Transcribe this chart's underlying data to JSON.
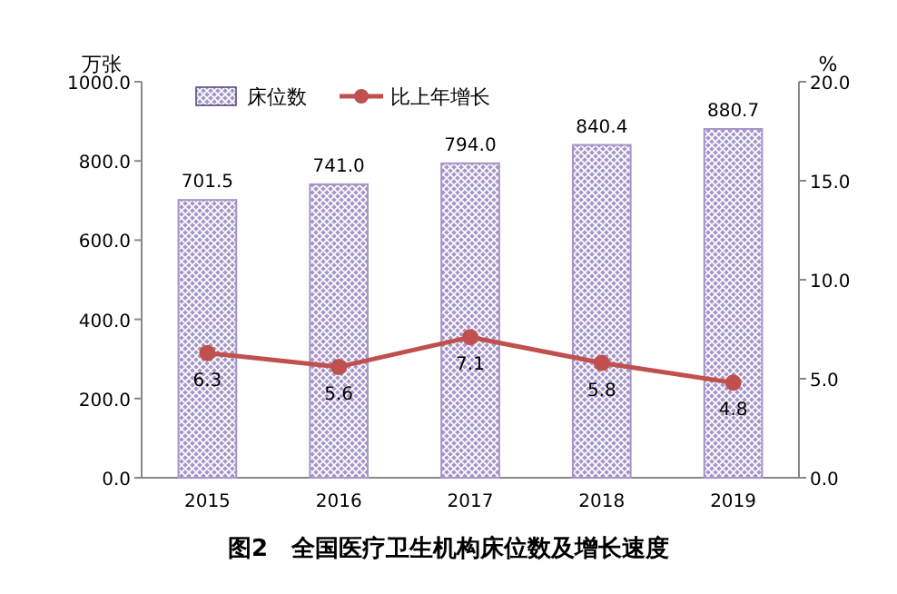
{
  "chart_data": {
    "type": "bar",
    "title": "图2　全国医疗卫生机构床位数及增长速度",
    "ylabel": "万张",
    "y2label": "%",
    "categories": [
      "2015",
      "2016",
      "2017",
      "2018",
      "2019"
    ],
    "series": [
      {
        "name": "床位数",
        "color": "#a696c8",
        "values": [
          701.5,
          741.0,
          794.0,
          840.4,
          880.7
        ],
        "value_labels": [
          "701.5",
          "741.0",
          "794.0",
          "840.4",
          "880.7"
        ]
      },
      {
        "name": "比上年增长",
        "type": "line",
        "axis": "y2",
        "color": "#c0504d",
        "values": [
          6.3,
          5.6,
          7.1,
          5.8,
          4.8
        ],
        "value_labels": [
          "6.3",
          "5.6",
          "7.1",
          "5.8",
          "4.8"
        ]
      }
    ],
    "ylim": [
      0,
      1000
    ],
    "yticks": [
      {
        "value": 0,
        "label": "0.0"
      },
      {
        "value": 200,
        "label": "200.0"
      },
      {
        "value": 400,
        "label": "400.0"
      },
      {
        "value": 600,
        "label": "600.0"
      },
      {
        "value": 800,
        "label": "800.0"
      },
      {
        "value": 1000,
        "label": "1000.0"
      }
    ],
    "y2lim": [
      0,
      20
    ],
    "y2ticks": [
      {
        "value": 0,
        "label": "0.0"
      },
      {
        "value": 5,
        "label": "5.0"
      },
      {
        "value": 10,
        "label": "10.0"
      },
      {
        "value": 15,
        "label": "15.0"
      },
      {
        "value": 20,
        "label": "20.0"
      }
    ],
    "legend": "top",
    "grid": false,
    "marker": "circle",
    "line_style": "solid"
  }
}
